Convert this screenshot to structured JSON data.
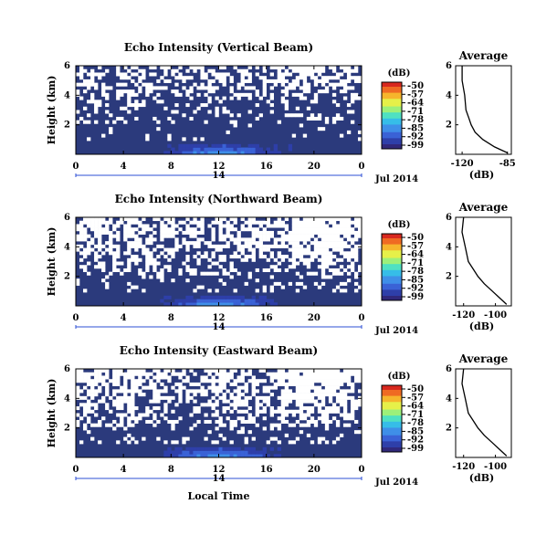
{
  "colors": {
    "background": "#2b3a7c",
    "missing": "#ffffff",
    "axis": "#000000",
    "day_marker": "#2d4fd6",
    "colormap": [
      "#30287a",
      "#2e3fa9",
      "#3a62d6",
      "#3f8fe8",
      "#36bde8",
      "#4fe1c2",
      "#9df07a",
      "#e6f049",
      "#f6b52c",
      "#ef6a23",
      "#d8281f"
    ]
  },
  "x_axis": {
    "ticks": [
      "0",
      "4",
      "8",
      "12",
      "16",
      "20",
      "0"
    ],
    "day_label": "14",
    "date_label": "Jul 2014",
    "xlabel": "Local Time"
  },
  "panels": [
    {
      "title": "Echo Intensity (Vertical Beam)",
      "ylabel": "Height (km)",
      "yticks": [
        "2",
        "4",
        "6"
      ],
      "colorbar": {
        "unit": "(dB)",
        "ticks": [
          "-50",
          "-57",
          "-64",
          "-71",
          "-78",
          "-85",
          "-92",
          "-99"
        ]
      },
      "average": {
        "title": "Average",
        "xlabel": "(dB)",
        "xticks": [
          "-120",
          "-85"
        ],
        "yticks": [
          "2",
          "4",
          "6"
        ]
      }
    },
    {
      "title": "Echo Intensity (Northward Beam)",
      "ylabel": "Height (km)",
      "yticks": [
        "2",
        "4",
        "6"
      ],
      "colorbar": {
        "unit": "(dB)",
        "ticks": [
          "-50",
          "-57",
          "-64",
          "-71",
          "-78",
          "-85",
          "-92",
          "-99"
        ]
      },
      "average": {
        "title": "Average",
        "xlabel": "(dB)",
        "xticks": [
          "-120",
          "-100"
        ],
        "yticks": [
          "2",
          "4",
          "6"
        ]
      }
    },
    {
      "title": "Echo Intensity (Eastward Beam)",
      "ylabel": "Height (km)",
      "yticks": [
        "2",
        "4",
        "6"
      ],
      "colorbar": {
        "unit": "(dB)",
        "ticks": [
          "-50",
          "-57",
          "-64",
          "-71",
          "-78",
          "-85",
          "-92",
          "-99"
        ]
      },
      "average": {
        "title": "Average",
        "xlabel": "(dB)",
        "xticks": [
          "-120",
          "-100"
        ],
        "yticks": [
          "2",
          "4",
          "6"
        ]
      }
    }
  ],
  "chart_data": [
    {
      "type": "heatmap",
      "title": "Echo Intensity (Vertical Beam)",
      "xlabel": "",
      "ylabel": "Height (km)",
      "xlim_hours": [
        0,
        24
      ],
      "ylim_km": [
        0,
        6
      ],
      "colorbar_range_db": [
        -99,
        -50
      ],
      "dominant_value_db": -99,
      "missing_fraction_by_height": [
        [
          0.5,
          0.0
        ],
        [
          1.5,
          0.05
        ],
        [
          2.5,
          0.15
        ],
        [
          3.5,
          0.2
        ],
        [
          4.5,
          0.45
        ],
        [
          5.5,
          0.5
        ]
      ],
      "strong_echo_band": {
        "height_km": [
          0,
          0.6
        ],
        "hours": [
          7,
          20
        ],
        "peak_hour": 12,
        "peak_db": -78
      },
      "average_profile": {
        "x_db": [
          -85,
          -95,
          -104,
          -110,
          -113,
          -115,
          -117,
          -118,
          -120,
          -120
        ],
        "y_km": [
          0.1,
          0.5,
          1.0,
          1.5,
          2.0,
          2.5,
          3.0,
          4.0,
          5.0,
          6.0
        ],
        "xlim": [
          -125,
          -82
        ]
      }
    },
    {
      "type": "heatmap",
      "title": "Echo Intensity (Northward Beam)",
      "xlabel": "",
      "ylabel": "Height (km)",
      "xlim_hours": [
        0,
        24
      ],
      "ylim_km": [
        0,
        6
      ],
      "colorbar_range_db": [
        -99,
        -50
      ],
      "dominant_value_db": -99,
      "missing_fraction_by_height": [
        [
          0.5,
          0.0
        ],
        [
          1.5,
          0.15
        ],
        [
          2.5,
          0.35
        ],
        [
          3.5,
          0.5
        ],
        [
          4.5,
          0.65
        ],
        [
          5.5,
          0.7
        ]
      ],
      "strong_echo_band": {
        "height_km": [
          0,
          0.5
        ],
        "hours": [
          7,
          20
        ],
        "peak_hour": 12,
        "peak_db": -80
      },
      "average_profile": {
        "x_db": [
          -93,
          -97,
          -102,
          -107,
          -111,
          -114,
          -117,
          -119,
          -121,
          -120
        ],
        "y_km": [
          0.1,
          0.5,
          1.0,
          1.5,
          2.0,
          2.5,
          3.0,
          4.0,
          5.0,
          6.0
        ],
        "xlim": [
          -125,
          -90
        ]
      }
    },
    {
      "type": "heatmap",
      "title": "Echo Intensity (Eastward Beam)",
      "xlabel": "Local Time",
      "ylabel": "Height (km)",
      "xlim_hours": [
        0,
        24
      ],
      "ylim_km": [
        0,
        6
      ],
      "colorbar_range_db": [
        -99,
        -50
      ],
      "dominant_value_db": -99,
      "missing_fraction_by_height": [
        [
          0.5,
          0.0
        ],
        [
          1.5,
          0.15
        ],
        [
          2.5,
          0.35
        ],
        [
          3.5,
          0.5
        ],
        [
          4.5,
          0.6
        ],
        [
          5.5,
          0.7
        ]
      ],
      "strong_echo_band": {
        "height_km": [
          0,
          0.5
        ],
        "hours": [
          7,
          20
        ],
        "peak_hour": 12,
        "peak_db": -80
      },
      "average_profile": {
        "x_db": [
          -93,
          -97,
          -102,
          -107,
          -111,
          -114,
          -117,
          -119,
          -121,
          -120
        ],
        "y_km": [
          0.1,
          0.5,
          1.0,
          1.5,
          2.0,
          2.5,
          3.0,
          4.0,
          5.0,
          6.0
        ],
        "xlim": [
          -125,
          -90
        ]
      }
    }
  ]
}
